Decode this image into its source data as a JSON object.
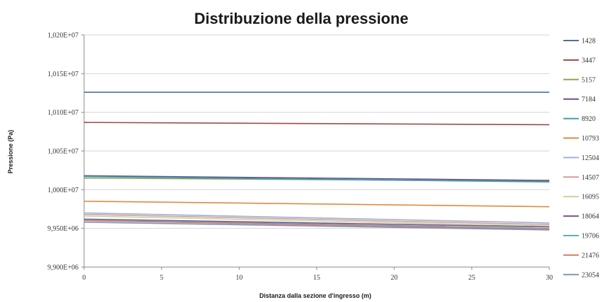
{
  "chart_data": {
    "type": "line",
    "title": "Distribuzione della pressione",
    "xlabel": "Distanza dalla sezione d'ingresso (m)",
    "ylabel": "Pressione (Pa)",
    "xlim": [
      0,
      30
    ],
    "ylim": [
      9900000,
      10200000
    ],
    "x_ticks": [
      "0",
      "5",
      "10",
      "15",
      "20",
      "25",
      "30"
    ],
    "y_ticks": [
      "9,900E+06",
      "9,950E+06",
      "1,000E+07",
      "1,005E+07",
      "1,010E+07",
      "1,015E+07",
      "1,020E+07"
    ],
    "x_tick_values": [
      0,
      5,
      10,
      15,
      20,
      25,
      30
    ],
    "y_tick_values": [
      9900000,
      9950000,
      10000000,
      10050000,
      10100000,
      10150000,
      10200000
    ],
    "grid": true,
    "legend_position": "right",
    "series": [
      {
        "name": "1428",
        "color": "#4a6fa5",
        "x": [
          0,
          30
        ],
        "y": [
          10126000,
          10126000
        ]
      },
      {
        "name": "3447",
        "color": "#a04848",
        "x": [
          0,
          30
        ],
        "y": [
          10087000,
          10084000
        ]
      },
      {
        "name": "5157",
        "color": "#8aa84a",
        "x": [
          0,
          30
        ],
        "y": [
          10015000,
          10011000
        ]
      },
      {
        "name": "7184",
        "color": "#6a4f8f",
        "x": [
          0,
          30
        ],
        "y": [
          10018000,
          10012000
        ]
      },
      {
        "name": "8920",
        "color": "#3d9bb5",
        "x": [
          0,
          30
        ],
        "y": [
          10017000,
          10010000
        ]
      },
      {
        "name": "10793",
        "color": "#e08a3a",
        "x": [
          0,
          30
        ],
        "y": [
          9985000,
          9978000
        ]
      },
      {
        "name": "12504",
        "color": "#9cb2d6",
        "x": [
          0,
          30
        ],
        "y": [
          9970000,
          9957000
        ]
      },
      {
        "name": "14507",
        "color": "#d69a9a",
        "x": [
          0,
          30
        ],
        "y": [
          9968000,
          9955000
        ]
      },
      {
        "name": "16095",
        "color": "#c2d69b",
        "x": [
          0,
          30
        ],
        "y": [
          9966000,
          9953000
        ]
      },
      {
        "name": "18064",
        "color": "#7f4f8f",
        "x": [
          0,
          30
        ],
        "y": [
          9962000,
          9952000
        ]
      },
      {
        "name": "19706",
        "color": "#5aaec4",
        "x": [
          0,
          30
        ],
        "y": [
          9961000,
          9950000
        ]
      },
      {
        "name": "21476",
        "color": "#e07b63",
        "x": [
          0,
          30
        ],
        "y": [
          9960000,
          9949000
        ]
      },
      {
        "name": "23054",
        "color": "#7f93b8",
        "x": [
          0,
          30
        ],
        "y": [
          9958000,
          9948000
        ]
      }
    ]
  }
}
